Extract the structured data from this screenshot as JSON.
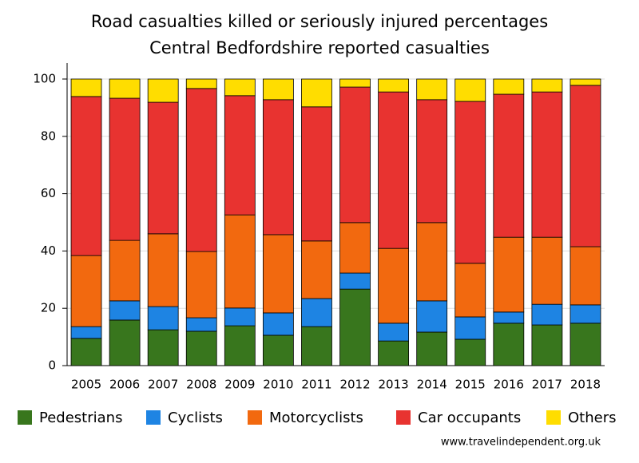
{
  "chart_data": {
    "type": "stacked_bar",
    "title": "Road casualties killed or seriously injured percentages",
    "subtitle": "Central Bedfordshire reported casualties",
    "source": "www.travelindependent.org.uk",
    "categories": [
      "2005",
      "2006",
      "2007",
      "2008",
      "2009",
      "2010",
      "2011",
      "2012",
      "2013",
      "2014",
      "2015",
      "2016",
      "2017",
      "2018"
    ],
    "series": [
      {
        "name": "Pedestrians",
        "color": "#38761d",
        "values": [
          9.5,
          15.9,
          12.5,
          12.0,
          13.9,
          10.6,
          13.6,
          26.7,
          8.6,
          11.7,
          9.2,
          14.8,
          14.2,
          14.8
        ]
      },
      {
        "name": "Cyclists",
        "color": "#1e84e3",
        "values": [
          4.1,
          6.7,
          8.1,
          4.7,
          6.2,
          7.8,
          9.8,
          5.6,
          6.2,
          10.9,
          7.8,
          3.9,
          7.2,
          6.4
        ]
      },
      {
        "name": "Motorcyclists",
        "color": "#f2690f",
        "values": [
          24.8,
          21.1,
          25.4,
          23.1,
          32.5,
          27.3,
          20.1,
          17.6,
          26.1,
          27.3,
          18.7,
          26.1,
          23.4,
          20.3
        ]
      },
      {
        "name": "Car occupants",
        "color": "#e83330",
        "values": [
          55.5,
          49.6,
          45.9,
          56.9,
          41.6,
          47.1,
          46.8,
          47.3,
          54.6,
          42.9,
          56.5,
          49.9,
          50.7,
          56.3
        ]
      },
      {
        "name": "Others",
        "color": "#ffdd00",
        "values": [
          6.1,
          6.7,
          8.1,
          3.3,
          5.8,
          7.2,
          9.7,
          2.8,
          4.5,
          7.2,
          7.8,
          5.3,
          4.5,
          2.2
        ]
      }
    ],
    "ylim": [
      0,
      100
    ],
    "yticks": [
      0,
      20,
      40,
      60,
      80,
      100
    ],
    "grid": true
  }
}
